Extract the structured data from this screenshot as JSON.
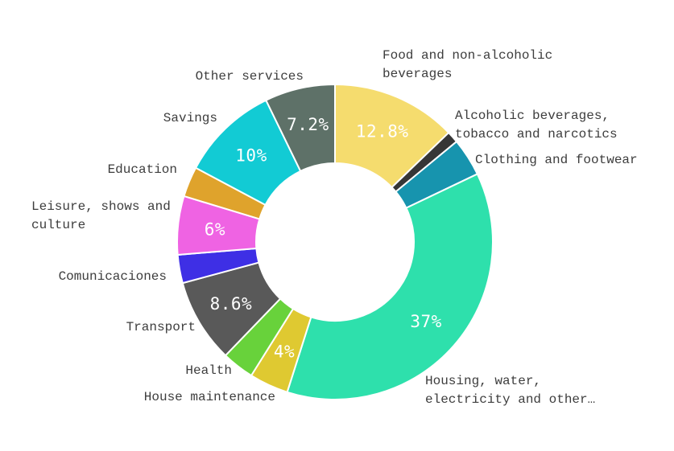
{
  "chart_data": {
    "type": "pie",
    "subtype": "donut",
    "title": "",
    "unit": "%",
    "legend": "none",
    "layout_hints": {
      "start_angle_deg": 0,
      "direction": "clockwise",
      "inner_radius_ratio": 0.5,
      "labels": "outside-callouts",
      "value_labels": "inside-white-for-large-slices"
    },
    "colors": {
      "background": "#FFFFFF",
      "separator": "#FFFFFF",
      "callout_text": "#3D3D3D",
      "pct_text": "#FFFFFF"
    },
    "slices": [
      {
        "name": "Food and non-alcoholic beverages",
        "label": "Food and non-alcoholic\nbeverages",
        "value": 12.8,
        "pct_label": "12.8%",
        "color": "#F5DC6E"
      },
      {
        "name": "Alcoholic beverages, tobacco and narcotics",
        "label": "Alcoholic beverages,\ntobacco and narcotics",
        "value": 1.2,
        "pct_label": "",
        "color": "#363636"
      },
      {
        "name": "Clothing and footwear",
        "label": "Clothing and footwear",
        "value": 3.9,
        "pct_label": "",
        "color": "#1794AE"
      },
      {
        "name": "Housing, water, electricity and other…",
        "label": "Housing, water,\nelectricity and other…",
        "value": 37,
        "pct_label": "37%",
        "color": "#2EE0AC"
      },
      {
        "name": "House maintenance",
        "label": "House maintenance",
        "value": 4,
        "pct_label": "4%",
        "color": "#DFC931"
      },
      {
        "name": "Health",
        "label": "Health",
        "value": 3.3,
        "pct_label": "",
        "color": "#68D23B"
      },
      {
        "name": "Transport",
        "label": "Transport",
        "value": 8.6,
        "pct_label": "8.6%",
        "color": "#595959"
      },
      {
        "name": "Comunicaciones",
        "label": "Comunicaciones",
        "value": 2.9,
        "pct_label": "",
        "color": "#3E2FE5"
      },
      {
        "name": "Leisure, shows and culture",
        "label": "Leisure, shows and\nculture",
        "value": 6,
        "pct_label": "6%",
        "color": "#EF63E3"
      },
      {
        "name": "Education",
        "label": "Education",
        "value": 3.1,
        "pct_label": "",
        "color": "#DFA32C"
      },
      {
        "name": "Savings",
        "label": "Savings",
        "value": 10,
        "pct_label": "10%",
        "color": "#12CBD4"
      },
      {
        "name": "Other services",
        "label": "Other services",
        "value": 7.2,
        "pct_label": "7.2%",
        "color": "#5E7168"
      }
    ]
  }
}
